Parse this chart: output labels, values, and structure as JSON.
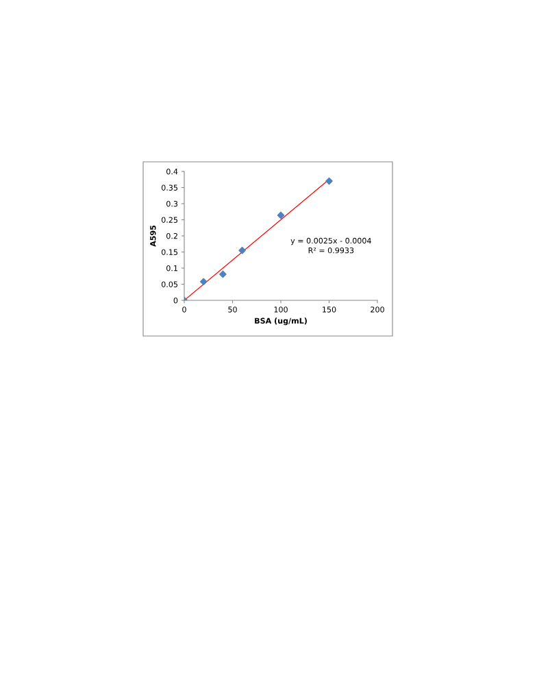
{
  "chart_data": {
    "type": "scatter",
    "xlabel": "BSA (ug/mL)",
    "ylabel": "A595",
    "series": [
      {
        "color": "#4f81bd",
        "marker": "diamond",
        "x": [
          0,
          20,
          40,
          60,
          100,
          150
        ],
        "values": [
          0,
          0.058,
          0.081,
          0.155,
          0.264,
          0.37
        ]
      },
      {
        "type": "line",
        "color": "#ff0000",
        "marker": "none",
        "x": [
          0,
          150
        ],
        "values": [
          0,
          0.375
        ]
      }
    ],
    "xlim": [
      0,
      200
    ],
    "xticks": [
      0,
      50,
      100,
      150,
      200
    ],
    "ylim": [
      0,
      0.4
    ],
    "yticks": [
      0,
      0.05,
      0.1,
      0.15,
      0.2,
      0.25,
      0.3,
      0.35,
      0.4
    ],
    "grid": false,
    "legend": false,
    "annotations": [
      "y = 0.0025x - 0.0004\nR² = 0.9933"
    ]
  }
}
